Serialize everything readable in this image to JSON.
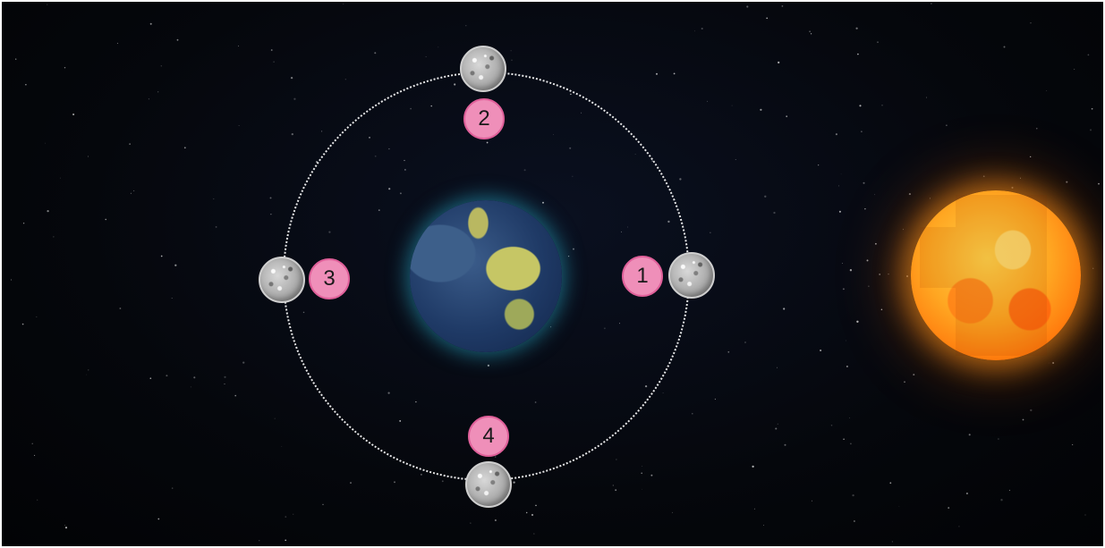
{
  "diagram": {
    "positions": [
      {
        "label": "1"
      },
      {
        "label": "2"
      },
      {
        "label": "3"
      },
      {
        "label": "4"
      }
    ]
  },
  "colors": {
    "badge_fill": "#ef8fb9",
    "badge_border": "#e0609a",
    "space": "#05070c",
    "orbit": "#ffffff"
  }
}
